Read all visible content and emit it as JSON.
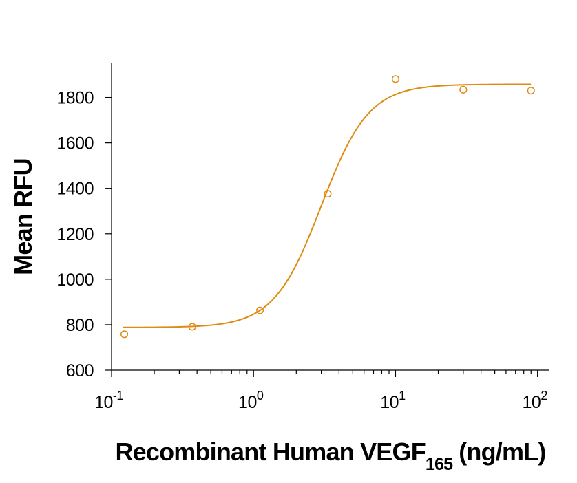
{
  "chart_data": {
    "type": "scatter",
    "title": "",
    "xlabel": "Recombinant Human VEGF",
    "xlabel_subscript": "165",
    "xlabel_unit": "(ng/mL)",
    "ylabel": "Mean RFU",
    "xscale": "log",
    "xlim": [
      0.1,
      120
    ],
    "ylim": [
      600,
      1950
    ],
    "grid": false,
    "yticks": [
      600,
      800,
      1000,
      1200,
      1400,
      1600,
      1800
    ],
    "ytick_labels": [
      "600",
      "800",
      "1000",
      "1200",
      "1400",
      "1600",
      "1800"
    ],
    "xticks": [
      {
        "value": 0.1,
        "base": "10",
        "exp": "-1"
      },
      {
        "value": 1,
        "base": "10",
        "exp": "0"
      },
      {
        "value": 10,
        "base": "10",
        "exp": "1"
      },
      {
        "value": 100,
        "base": "10",
        "exp": "2"
      }
    ],
    "color": "#E08A12",
    "series": [
      {
        "x": [
          0.123,
          0.37,
          1.11,
          3.33,
          10,
          30,
          90
        ],
        "y": [
          758,
          791,
          863,
          1376,
          1881,
          1834,
          1830
        ]
      }
    ],
    "fit": {
      "model": "4-parameter logistic",
      "bottom": 788,
      "top": 1858,
      "ec50": 3.0,
      "hill": 2.6,
      "x_range": [
        0.12,
        90
      ]
    }
  }
}
